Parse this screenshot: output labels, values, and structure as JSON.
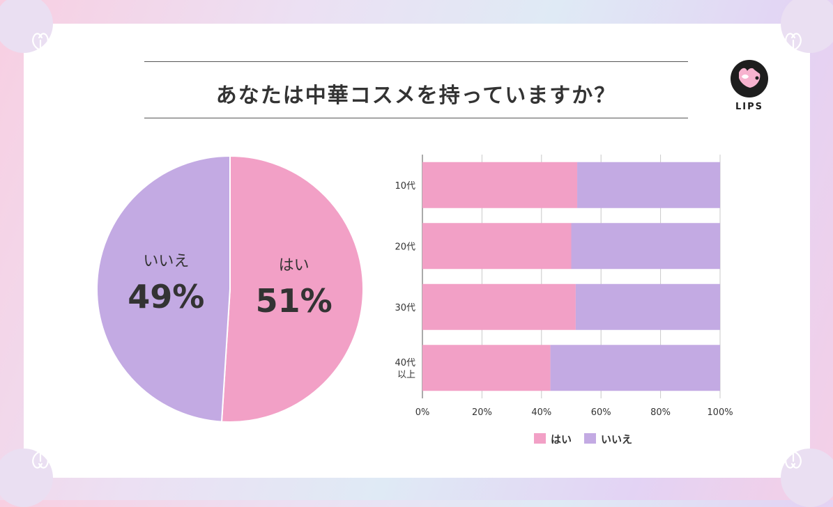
{
  "title": "あなたは中華コスメを持っていますか？",
  "brand": "LIPS",
  "colors": {
    "yes": "#f2a0c6",
    "no": "#c3aae3"
  },
  "chart_data": [
    {
      "type": "pie",
      "slices": [
        {
          "label": "はい",
          "value": 51,
          "display": "51%",
          "color": "#f2a0c6"
        },
        {
          "label": "いいえ",
          "value": 49,
          "display": "49%",
          "color": "#c3aae3"
        }
      ]
    },
    {
      "type": "bar",
      "orientation": "horizontal",
      "stacked": true,
      "categories": [
        "10代",
        "20代",
        "30代",
        "40代\n以上"
      ],
      "series": [
        {
          "name": "はい",
          "values": [
            52,
            50,
            51.5,
            43
          ],
          "color": "#f2a0c6"
        },
        {
          "name": "いいえ",
          "values": [
            48,
            50,
            48.5,
            57
          ],
          "color": "#c3aae3"
        }
      ],
      "xlim": [
        0,
        100
      ],
      "xticks": [
        "0%",
        "20%",
        "40%",
        "60%",
        "80%",
        "100%"
      ],
      "grid": true,
      "legend": "bottom"
    }
  ]
}
